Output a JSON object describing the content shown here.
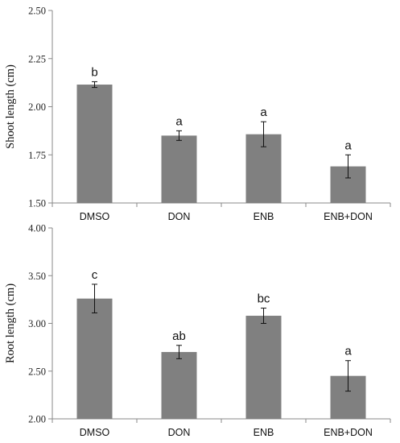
{
  "chart_data": [
    {
      "type": "bar",
      "categories": [
        "DMSO",
        "DON",
        "ENB",
        "ENB+DON"
      ],
      "values": [
        2.115,
        1.85,
        1.857,
        1.69
      ],
      "errors": [
        0.015,
        0.025,
        0.065,
        0.06
      ],
      "significance": [
        "b",
        "a",
        "a",
        "a"
      ],
      "ylabel": "Shoot length (cm)",
      "ylim": [
        1.5,
        2.5
      ],
      "yticks": [
        "1.50",
        "1.75",
        "2.00",
        "2.25",
        "2.50"
      ],
      "grid": false,
      "colors": {
        "bar": "#808080",
        "axis": "#8a8a8a"
      }
    },
    {
      "type": "bar",
      "categories": [
        "DMSO",
        "DON",
        "ENB",
        "ENB+DON"
      ],
      "values": [
        3.26,
        2.7,
        3.08,
        2.45
      ],
      "errors": [
        0.15,
        0.07,
        0.08,
        0.16
      ],
      "significance": [
        "c",
        "ab",
        "bc",
        "a"
      ],
      "ylabel": "Root  length (cm)",
      "ylim": [
        2.0,
        4.0
      ],
      "yticks": [
        "2.00",
        "2.50",
        "3.00",
        "3.50",
        "4.00"
      ],
      "grid": false,
      "colors": {
        "bar": "#808080",
        "axis": "#8a8a8a"
      }
    }
  ]
}
